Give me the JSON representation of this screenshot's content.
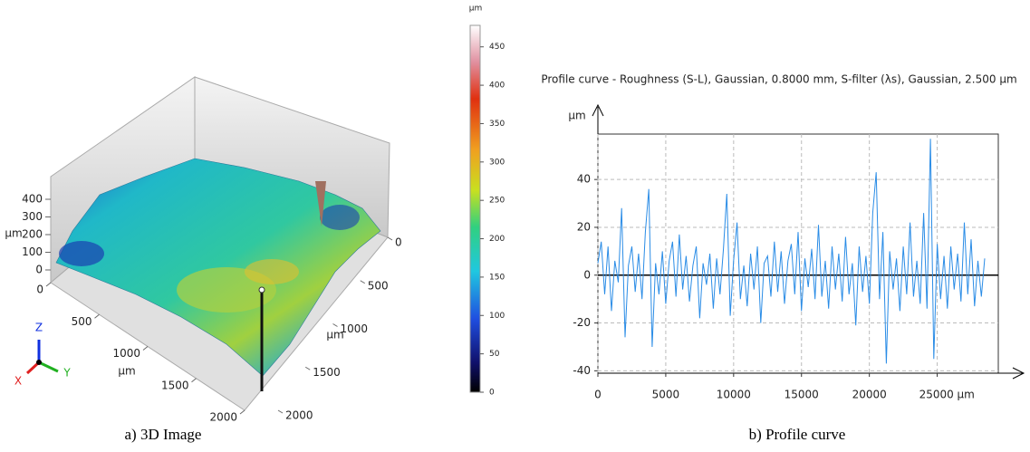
{
  "chart_data": [
    {
      "type": "surface3d",
      "caption": "a) 3D Image",
      "xlabel": "µm",
      "ylabel": "µm",
      "zlabel": "µm",
      "xlim": [
        0,
        2000
      ],
      "xticks": [
        0,
        500,
        1000,
        1500,
        2000
      ],
      "ylim": [
        0,
        2000
      ],
      "yticks": [
        0,
        500,
        1000,
        1500,
        2000
      ],
      "zlim": [
        0,
        500
      ],
      "zticks": [
        0,
        100,
        200,
        300,
        400
      ],
      "axis_triad": [
        "X",
        "Y",
        "Z"
      ],
      "colorbar": {
        "label": "µm",
        "lim": [
          0,
          478
        ],
        "ticks": [
          0,
          50,
          100,
          150,
          200,
          250,
          300,
          350,
          400,
          450
        ]
      }
    },
    {
      "type": "line",
      "caption": "b) Profile curve",
      "title": "Profile curve - Roughness (S-L), Gaussian, 0.8000 mm, S-filter (λs), Gaussian, 2.500 µm",
      "ylabel": "µm",
      "x": [
        0,
        250,
        500,
        750,
        1000,
        1250,
        1500,
        1750,
        2000,
        2250,
        2500,
        2750,
        3000,
        3250,
        3500,
        3750,
        4000,
        4250,
        4500,
        4750,
        5000,
        5250,
        5500,
        5750,
        6000,
        6250,
        6500,
        6750,
        7000,
        7250,
        7500,
        7750,
        8000,
        8250,
        8500,
        8750,
        9000,
        9250,
        9500,
        9750,
        10000,
        10250,
        10500,
        10750,
        11000,
        11250,
        11500,
        11750,
        12000,
        12250,
        12500,
        12750,
        13000,
        13250,
        13500,
        13750,
        14000,
        14250,
        14500,
        14750,
        15000,
        15250,
        15500,
        15750,
        16000,
        16250,
        16500,
        16750,
        17000,
        17250,
        17500,
        17750,
        18000,
        18250,
        18500,
        18750,
        19000,
        19250,
        19500,
        19750,
        20000,
        20250,
        20500,
        20750,
        21000,
        21250,
        21500,
        21750,
        22000,
        22250,
        22500,
        22750,
        23000,
        23250,
        23500,
        23750,
        24000,
        24250,
        24500,
        24750,
        25000,
        25250,
        25500,
        25750,
        26000,
        26250,
        26500,
        26750,
        27000,
        27250,
        27500,
        27750,
        28000,
        28250,
        28500
      ],
      "series": [
        {
          "color": "#2a8ce6",
          "values": [
            5,
            14,
            -8,
            12,
            -15,
            6,
            -3,
            28,
            -26,
            4,
            12,
            -7,
            9,
            -10,
            18,
            36,
            -30,
            5,
            -8,
            10,
            -12,
            6,
            14,
            -9,
            17,
            -6,
            8,
            -11,
            4,
            12,
            -18,
            5,
            -4,
            9,
            -14,
            7,
            -8,
            11,
            34,
            -17,
            6,
            22,
            -10,
            4,
            -13,
            9,
            -6,
            12,
            -20,
            5,
            8,
            -9,
            14,
            -7,
            10,
            -12,
            6,
            13,
            -8,
            18,
            -15,
            7,
            -5,
            11,
            -10,
            21,
            -9,
            6,
            -14,
            12,
            -6,
            9,
            -11,
            16,
            -8,
            5,
            -21,
            12,
            -7,
            8,
            -12,
            26,
            43,
            -10,
            18,
            -37,
            10,
            -6,
            7,
            -15,
            12,
            -8,
            22,
            -9,
            6,
            -12,
            26,
            -14,
            57,
            -35,
            13,
            -10,
            8,
            -14,
            12,
            -6,
            9,
            -11,
            22,
            -8,
            15,
            -13,
            6,
            -9,
            7
          ]
        }
      ],
      "xlim": [
        0,
        29500
      ],
      "xticks": [
        0,
        5000,
        10000,
        15000,
        20000,
        {
          "value": 25000,
          "label": "25000 µm"
        }
      ],
      "ylim": [
        -41,
        59
      ],
      "yticks": [
        -40,
        -20,
        0,
        20,
        40
      ],
      "grid": true
    }
  ]
}
